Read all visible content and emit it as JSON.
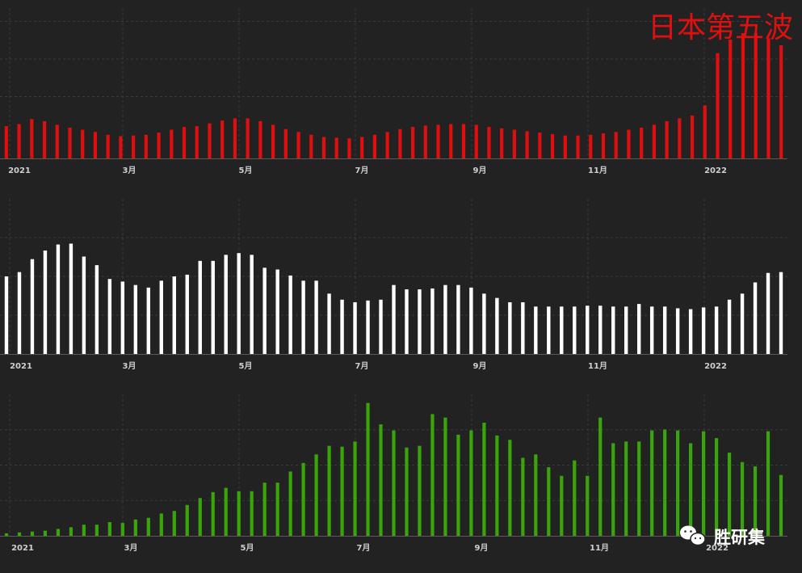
{
  "title": "日本第五波",
  "watermark": {
    "text": "胜研集",
    "icon": "wechat-icon"
  },
  "colors": {
    "background": "#222222",
    "grid": "#3a3a3a",
    "panel1": "#e00e0e",
    "panel2": "#ffffff",
    "panel3": "#3aa50a"
  },
  "chart_data": [
    {
      "type": "bar",
      "name": "panel-top",
      "x_ticks": [
        "2021",
        "3月",
        "5月",
        "7月",
        "9月",
        "11月",
        "2022"
      ],
      "values": [
        45,
        48,
        55,
        52,
        47,
        43,
        40,
        37,
        33,
        31,
        32,
        33,
        36,
        40,
        44,
        45,
        49,
        53,
        56,
        56,
        52,
        47,
        41,
        37,
        33,
        30,
        29,
        28,
        30,
        33,
        37,
        41,
        44,
        46,
        47,
        48,
        48,
        47,
        44,
        42,
        40,
        38,
        36,
        34,
        32,
        32,
        33,
        35,
        37,
        40,
        43,
        47,
        52,
        56,
        60,
        74,
        147,
        166,
        175,
        175,
        168,
        158
      ],
      "ylim": [
        0,
        210
      ],
      "grid": true
    },
    {
      "type": "bar",
      "name": "panel-middle",
      "x_ticks": [
        "2021",
        "3月",
        "5月",
        "7月",
        "9月",
        "11月",
        "2022"
      ],
      "values": [
        90,
        95,
        110,
        120,
        127,
        128,
        113,
        103,
        87,
        84,
        80,
        77,
        85,
        90,
        92,
        108,
        108,
        115,
        117,
        115,
        100,
        98,
        91,
        85,
        85,
        70,
        63,
        60,
        62,
        63,
        80,
        75,
        75,
        76,
        80,
        80,
        77,
        70,
        65,
        60,
        60,
        55,
        55,
        55,
        55,
        56,
        56,
        55,
        55,
        58,
        55,
        55,
        53,
        52,
        54,
        55,
        63,
        70,
        83,
        94,
        95
      ],
      "ylim": [
        0,
        180
      ],
      "grid": true
    },
    {
      "type": "bar",
      "name": "panel-bottom",
      "x_ticks": [
        "2021",
        "3月",
        "5月",
        "7月",
        "9月",
        "11月",
        "2022"
      ],
      "values": [
        3,
        4,
        5,
        6,
        8,
        10,
        13,
        13,
        16,
        15,
        19,
        21,
        26,
        29,
        36,
        44,
        51,
        56,
        52,
        52,
        62,
        62,
        75,
        85,
        95,
        105,
        104,
        110,
        155,
        130,
        123,
        103,
        105,
        142,
        138,
        118,
        123,
        132,
        117,
        112,
        91,
        95,
        80,
        70,
        88,
        70,
        138,
        108,
        110,
        110,
        123,
        124,
        123,
        108,
        122,
        114,
        97,
        86,
        81,
        122,
        71
      ],
      "ylim": [
        0,
        165
      ],
      "grid": true
    }
  ]
}
